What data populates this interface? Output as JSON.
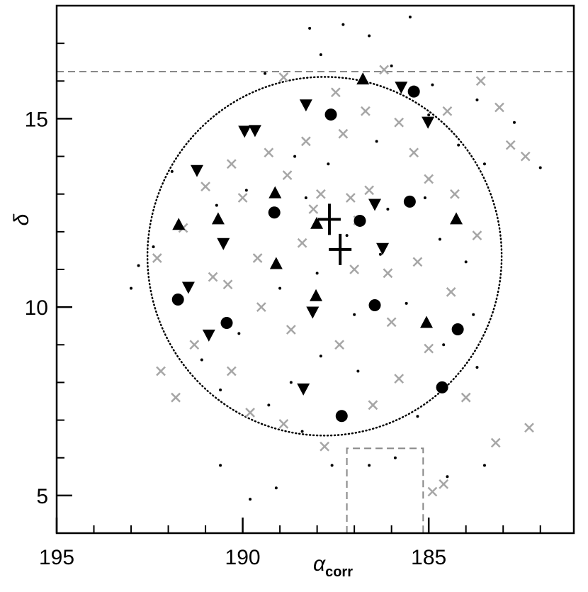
{
  "chart_data": {
    "type": "scatter",
    "xlabel": "α",
    "xlabel_subscript": "corr",
    "ylabel": "δ",
    "xlim": [
      195,
      181.1
    ],
    "ylim": [
      4,
      18
    ],
    "xticks": [
      195,
      190,
      185
    ],
    "yticks": [
      5,
      10,
      15
    ],
    "xminorticks": [
      194,
      193,
      192,
      191,
      189,
      188,
      187,
      186,
      184,
      183,
      182
    ],
    "yminorticks": [
      6,
      7,
      8,
      9,
      11,
      12,
      13,
      14,
      16,
      17
    ],
    "hline": 16.25,
    "circle": {
      "center": [
        187.8,
        11.35
      ],
      "radius": 4.76
    },
    "box": {
      "x": [
        187.2,
        185.15
      ],
      "y_top": 6.25
    },
    "series": [
      {
        "marker": "dot",
        "color": "#000000",
        "x": [
          187.3,
          186.6,
          185.5,
          188.2,
          186.0,
          187.9,
          189.4,
          184.9,
          183.7,
          182.7,
          182.0,
          183.5,
          192.8,
          193.0,
          192.4,
          191.9,
          190.7,
          189.9,
          188.6,
          187.7,
          186.4,
          185.1,
          184.7,
          184.0,
          183.8,
          184.6,
          185.6,
          186.3,
          187.2,
          188.0,
          189.0,
          190.1,
          191.1,
          190.6,
          189.3,
          188.4,
          187.6,
          186.6,
          185.9,
          184.5,
          183.5,
          186.9,
          187.9,
          188.7,
          185.3,
          183.7,
          190.6,
          189.8,
          189.1,
          187.0,
          188.3,
          186.1,
          185.0,
          184.2
        ],
        "y": [
          17.5,
          17.2,
          17.7,
          17.4,
          16.4,
          16.7,
          16.2,
          15.9,
          15.5,
          14.9,
          13.7,
          13.8,
          11.1,
          10.5,
          11.6,
          13.6,
          12.7,
          13.1,
          14.0,
          13.8,
          14.4,
          12.9,
          11.8,
          11.2,
          9.8,
          9.0,
          10.1,
          11.4,
          11.9,
          10.9,
          10.5,
          9.3,
          8.6,
          7.8,
          7.4,
          6.7,
          5.8,
          5.8,
          6.0,
          5.5,
          5.8,
          8.3,
          8.7,
          8.0,
          7.1,
          8.4,
          5.8,
          4.9,
          5.2,
          9.8,
          12.9,
          12.6,
          15.1,
          14.3
        ]
      },
      {
        "marker": "x",
        "color": "#a6a6a6",
        "x": [
          186.2,
          184.5,
          183.1,
          182.8,
          182.4,
          183.6,
          187.5,
          188.9,
          186.7,
          185.8,
          188.3,
          189.3,
          190.3,
          191.0,
          191.6,
          192.3,
          190.0,
          188.8,
          187.9,
          187.1,
          186.6,
          185.0,
          184.3,
          183.7,
          184.4,
          185.3,
          186.1,
          187.0,
          188.4,
          189.6,
          190.8,
          191.3,
          192.2,
          191.8,
          189.8,
          188.9,
          187.8,
          186.5,
          185.8,
          185.0,
          184.0,
          183.2,
          182.3,
          184.9,
          184.6,
          190.3,
          188.7,
          187.4,
          186.0,
          189.5,
          190.4,
          188.1,
          186.9,
          185.4,
          187.3
        ],
        "y": [
          16.3,
          15.2,
          15.3,
          14.3,
          14.0,
          16.0,
          15.7,
          16.1,
          15.2,
          14.9,
          14.4,
          14.1,
          13.8,
          13.2,
          12.1,
          11.3,
          12.9,
          13.5,
          13.0,
          12.9,
          13.1,
          13.4,
          13.0,
          11.9,
          10.4,
          11.2,
          10.9,
          11.0,
          11.7,
          11.3,
          10.8,
          9.0,
          8.3,
          7.6,
          7.2,
          6.9,
          6.3,
          7.4,
          8.1,
          8.9,
          7.6,
          6.4,
          6.8,
          5.1,
          5.3,
          8.3,
          9.4,
          9.0,
          9.6,
          10.0,
          10.6,
          12.6,
          12.3,
          14.1,
          14.6
        ]
      },
      {
        "marker": "circle",
        "color": "#000000",
        "x": [
          185.4,
          187.63,
          189.15,
          186.85,
          185.51,
          191.74,
          190.43,
          186.45,
          184.22,
          184.64,
          187.34
        ],
        "y": [
          15.72,
          15.11,
          12.51,
          12.29,
          12.8,
          10.2,
          9.58,
          10.05,
          9.41,
          7.87,
          7.11
        ]
      },
      {
        "marker": "triangle-up",
        "color": "#000000",
        "x": [
          186.77,
          189.13,
          188.01,
          191.72,
          190.66,
          184.26,
          189.1,
          188.03,
          185.06
        ],
        "y": [
          16.04,
          13.02,
          12.21,
          12.18,
          12.33,
          12.33,
          11.14,
          10.29,
          9.58
        ]
      },
      {
        "marker": "triangle-down",
        "color": "#000000",
        "x": [
          185.74,
          188.3,
          185.02,
          189.95,
          189.67,
          191.23,
          190.52,
          186.45,
          186.24,
          191.46,
          190.91,
          188.12,
          188.37
        ],
        "y": [
          15.85,
          15.38,
          14.92,
          14.68,
          14.7,
          13.64,
          11.7,
          12.74,
          11.57,
          10.54,
          9.27,
          9.88,
          7.84
        ]
      },
      {
        "marker": "plus",
        "color": "#000000",
        "x": [
          187.67,
          187.38
        ],
        "y": [
          12.33,
          11.53
        ]
      }
    ]
  }
}
